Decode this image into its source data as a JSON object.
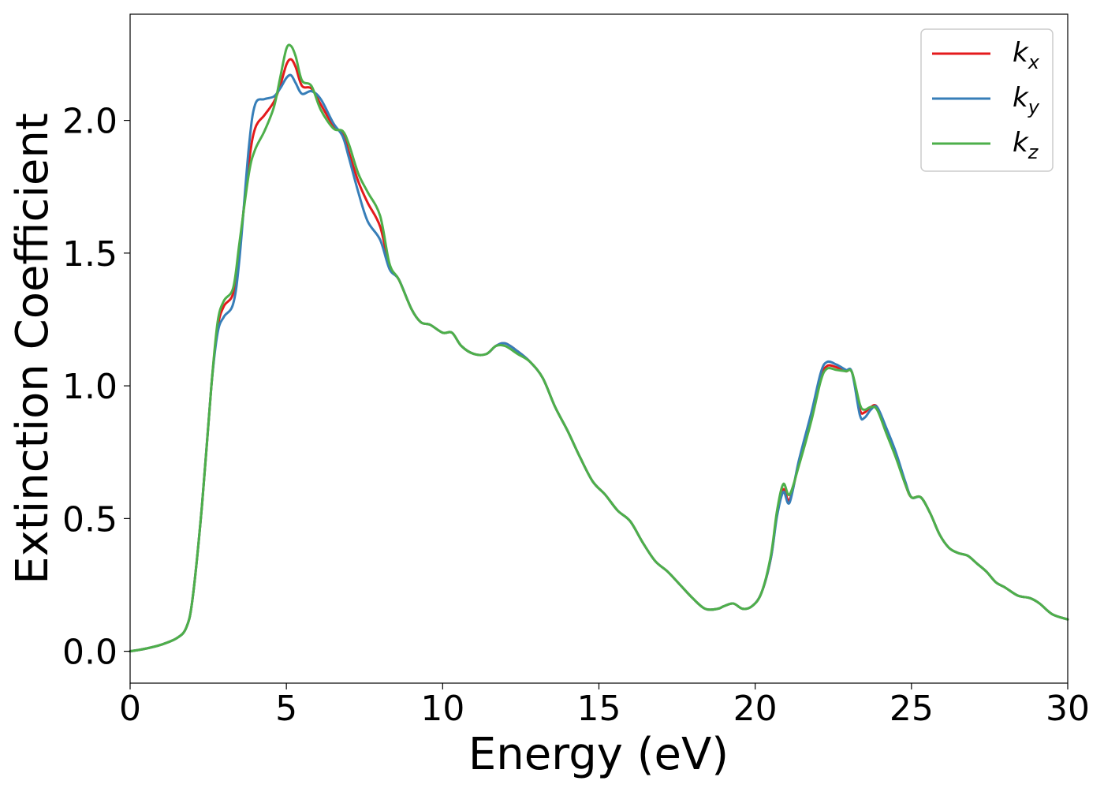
{
  "chart_data": {
    "type": "line",
    "xlabel": "Energy (eV)",
    "ylabel": "Extinction Coefficient",
    "xlim": [
      0,
      30
    ],
    "ylim": [
      -0.12,
      2.4
    ],
    "xticks": [
      0,
      5,
      10,
      15,
      20,
      25,
      30
    ],
    "xtick_labels": [
      "0",
      "5",
      "10",
      "15",
      "20",
      "25",
      "30"
    ],
    "yticks": [
      0.0,
      0.5,
      1.0,
      1.5,
      2.0
    ],
    "ytick_labels": [
      "0.0",
      "0.5",
      "1.0",
      "1.5",
      "2.0"
    ],
    "grid": false,
    "legend_position": "top-right",
    "series": [
      {
        "name": "k",
        "sub": "x",
        "color": "#e41a1c",
        "x": [
          0,
          0.5,
          1,
          1.5,
          1.8,
          2,
          2.3,
          2.6,
          2.8,
          3,
          3.3,
          3.5,
          3.8,
          4,
          4.3,
          4.6,
          4.8,
          5,
          5.15,
          5.3,
          5.5,
          5.8,
          6.1,
          6.5,
          6.8,
          7,
          7.3,
          7.6,
          8,
          8.3,
          8.6,
          9,
          9.3,
          9.6,
          10,
          10.3,
          10.6,
          11,
          11.4,
          11.7,
          12,
          12.4,
          12.8,
          13.2,
          13.6,
          14,
          14.4,
          14.8,
          15.2,
          15.6,
          16,
          16.4,
          16.8,
          17.2,
          17.6,
          18,
          18.4,
          18.8,
          19,
          19.3,
          19.6,
          19.9,
          20.2,
          20.5,
          20.7,
          20.9,
          21.1,
          21.4,
          21.8,
          22.1,
          22.3,
          22.6,
          22.9,
          23.1,
          23.35,
          23.5,
          23.7,
          23.9,
          24.2,
          24.5,
          24.8,
          25,
          25.3,
          25.6,
          25.9,
          26.2,
          26.5,
          26.8,
          27.1,
          27.4,
          27.7,
          28,
          28.4,
          28.8,
          29.1,
          29.5,
          30
        ],
        "values": [
          0.0,
          0.01,
          0.025,
          0.05,
          0.09,
          0.2,
          0.55,
          1.0,
          1.22,
          1.3,
          1.35,
          1.52,
          1.84,
          1.97,
          2.02,
          2.07,
          2.13,
          2.21,
          2.23,
          2.2,
          2.13,
          2.12,
          2.06,
          1.98,
          1.95,
          1.88,
          1.77,
          1.69,
          1.6,
          1.45,
          1.4,
          1.29,
          1.24,
          1.23,
          1.2,
          1.2,
          1.15,
          1.12,
          1.12,
          1.15,
          1.16,
          1.13,
          1.09,
          1.03,
          0.92,
          0.83,
          0.73,
          0.64,
          0.59,
          0.53,
          0.49,
          0.41,
          0.34,
          0.3,
          0.25,
          0.2,
          0.16,
          0.16,
          0.17,
          0.18,
          0.16,
          0.17,
          0.22,
          0.35,
          0.52,
          0.61,
          0.57,
          0.71,
          0.88,
          1.03,
          1.075,
          1.07,
          1.055,
          1.05,
          0.91,
          0.9,
          0.92,
          0.92,
          0.83,
          0.74,
          0.63,
          0.58,
          0.58,
          0.52,
          0.44,
          0.39,
          0.37,
          0.36,
          0.33,
          0.3,
          0.26,
          0.24,
          0.21,
          0.2,
          0.18,
          0.14,
          0.12
        ]
      },
      {
        "name": "k",
        "sub": "y",
        "color": "#377eb8",
        "x": [
          0,
          0.5,
          1,
          1.5,
          1.8,
          2,
          2.3,
          2.6,
          2.8,
          3,
          3.3,
          3.5,
          3.8,
          4,
          4.3,
          4.6,
          4.8,
          5,
          5.15,
          5.3,
          5.5,
          5.8,
          6.1,
          6.5,
          6.8,
          7,
          7.3,
          7.6,
          8,
          8.3,
          8.6,
          9,
          9.3,
          9.6,
          10,
          10.3,
          10.6,
          11,
          11.4,
          11.7,
          12,
          12.4,
          12.8,
          13.2,
          13.6,
          14,
          14.4,
          14.8,
          15.2,
          15.6,
          16,
          16.4,
          16.8,
          17.2,
          17.6,
          18,
          18.4,
          18.8,
          19,
          19.3,
          19.6,
          19.9,
          20.2,
          20.5,
          20.7,
          20.9,
          21.1,
          21.4,
          21.8,
          22.1,
          22.3,
          22.6,
          22.9,
          23.1,
          23.35,
          23.5,
          23.7,
          23.9,
          24.2,
          24.5,
          24.8,
          25,
          25.3,
          25.6,
          25.9,
          26.2,
          26.5,
          26.8,
          27.1,
          27.4,
          27.7,
          28,
          28.4,
          28.8,
          29.1,
          29.5,
          30
        ],
        "values": [
          0.0,
          0.01,
          0.025,
          0.05,
          0.09,
          0.2,
          0.55,
          1.0,
          1.2,
          1.26,
          1.31,
          1.48,
          1.9,
          2.06,
          2.08,
          2.09,
          2.12,
          2.16,
          2.17,
          2.14,
          2.1,
          2.11,
          2.08,
          1.99,
          1.94,
          1.86,
          1.73,
          1.62,
          1.55,
          1.44,
          1.4,
          1.29,
          1.24,
          1.23,
          1.2,
          1.2,
          1.15,
          1.12,
          1.12,
          1.15,
          1.16,
          1.13,
          1.09,
          1.03,
          0.92,
          0.83,
          0.73,
          0.64,
          0.59,
          0.53,
          0.49,
          0.41,
          0.34,
          0.3,
          0.25,
          0.2,
          0.16,
          0.16,
          0.17,
          0.18,
          0.16,
          0.17,
          0.22,
          0.35,
          0.51,
          0.6,
          0.56,
          0.72,
          0.9,
          1.05,
          1.09,
          1.08,
          1.06,
          1.05,
          0.89,
          0.88,
          0.91,
          0.92,
          0.84,
          0.75,
          0.64,
          0.58,
          0.58,
          0.52,
          0.44,
          0.39,
          0.37,
          0.36,
          0.33,
          0.3,
          0.26,
          0.24,
          0.21,
          0.2,
          0.18,
          0.14,
          0.12
        ]
      },
      {
        "name": "k",
        "sub": "z",
        "color": "#4daf4a",
        "x": [
          0,
          0.5,
          1,
          1.5,
          1.8,
          2,
          2.3,
          2.6,
          2.8,
          3,
          3.3,
          3.5,
          3.8,
          4,
          4.3,
          4.6,
          4.8,
          5,
          5.15,
          5.3,
          5.5,
          5.8,
          6.1,
          6.5,
          6.8,
          7,
          7.3,
          7.6,
          8,
          8.3,
          8.6,
          9,
          9.3,
          9.6,
          10,
          10.3,
          10.6,
          11,
          11.4,
          11.7,
          12,
          12.4,
          12.8,
          13.2,
          13.6,
          14,
          14.4,
          14.8,
          15.2,
          15.6,
          16,
          16.4,
          16.8,
          17.2,
          17.6,
          18,
          18.4,
          18.8,
          19,
          19.3,
          19.6,
          19.9,
          20.2,
          20.5,
          20.7,
          20.9,
          21.1,
          21.4,
          21.8,
          22.1,
          22.3,
          22.6,
          22.9,
          23.1,
          23.35,
          23.5,
          23.7,
          23.9,
          24.2,
          24.5,
          24.8,
          25,
          25.3,
          25.6,
          25.9,
          26.2,
          26.5,
          26.8,
          27.1,
          27.4,
          27.7,
          28,
          28.4,
          28.8,
          29.1,
          29.5,
          30
        ],
        "values": [
          0.0,
          0.01,
          0.025,
          0.05,
          0.09,
          0.2,
          0.55,
          1.0,
          1.24,
          1.32,
          1.37,
          1.54,
          1.8,
          1.89,
          1.96,
          2.05,
          2.16,
          2.27,
          2.28,
          2.24,
          2.15,
          2.13,
          2.04,
          1.97,
          1.96,
          1.91,
          1.8,
          1.73,
          1.64,
          1.46,
          1.4,
          1.29,
          1.24,
          1.23,
          1.2,
          1.2,
          1.15,
          1.12,
          1.12,
          1.15,
          1.15,
          1.12,
          1.09,
          1.03,
          0.92,
          0.83,
          0.73,
          0.64,
          0.59,
          0.53,
          0.49,
          0.41,
          0.34,
          0.3,
          0.25,
          0.2,
          0.16,
          0.16,
          0.17,
          0.18,
          0.16,
          0.17,
          0.22,
          0.36,
          0.53,
          0.63,
          0.59,
          0.7,
          0.87,
          1.02,
          1.065,
          1.06,
          1.055,
          1.05,
          0.93,
          0.91,
          0.92,
          0.91,
          0.82,
          0.73,
          0.63,
          0.58,
          0.58,
          0.52,
          0.44,
          0.39,
          0.37,
          0.36,
          0.33,
          0.3,
          0.26,
          0.24,
          0.21,
          0.2,
          0.18,
          0.14,
          0.12
        ]
      }
    ]
  }
}
